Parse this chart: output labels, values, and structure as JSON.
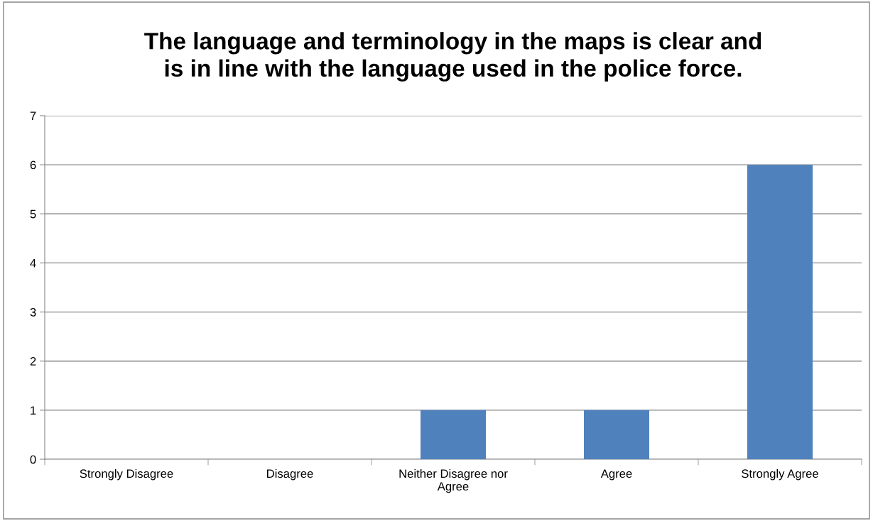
{
  "chart_data": {
    "type": "bar",
    "title": "The language and terminology in the maps is clear and\nis in line with the language used in the police force.",
    "categories": [
      "Strongly Disagree",
      "Disagree",
      "Neither Disagree nor Agree",
      "Agree",
      "Strongly Agree"
    ],
    "values": [
      0,
      0,
      1,
      1,
      6
    ],
    "color": "#4f81bd",
    "ylim": [
      0,
      7
    ],
    "yticks": [
      0,
      1,
      2,
      3,
      4,
      5,
      6,
      7
    ],
    "grid": "y",
    "legend": false
  }
}
